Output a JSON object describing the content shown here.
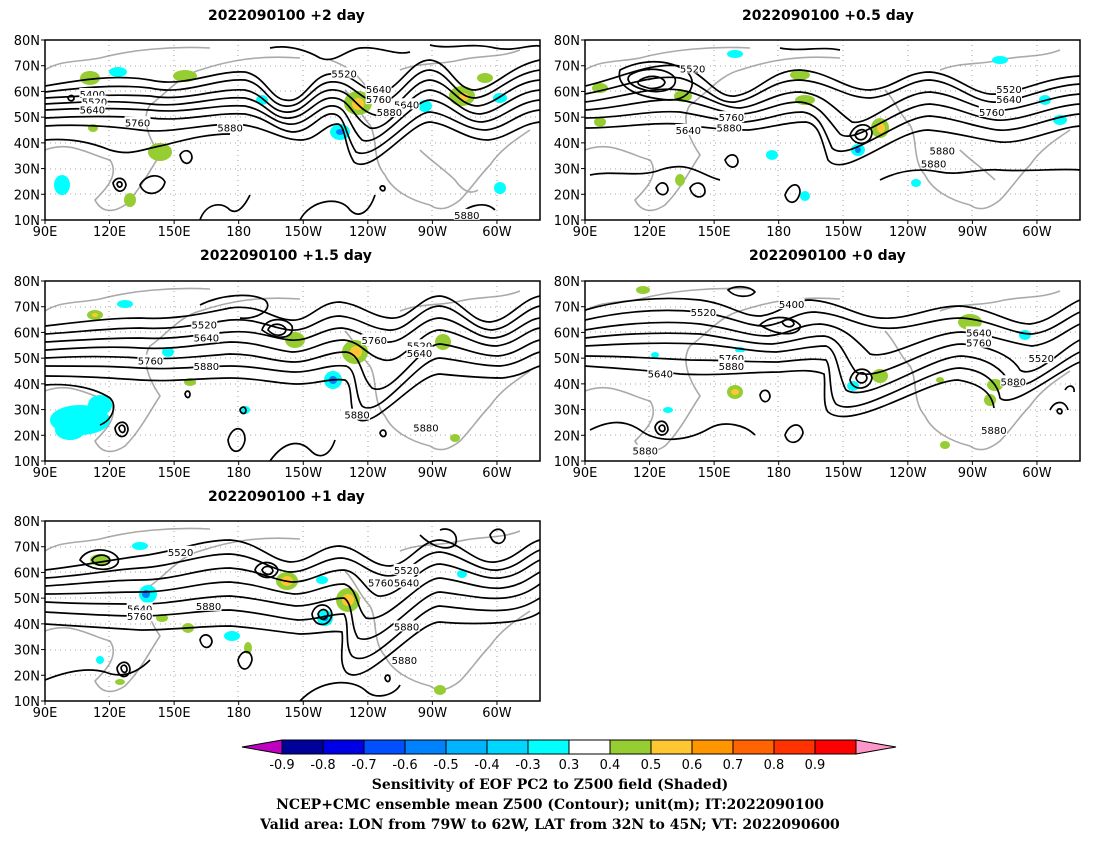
{
  "chart_data": [
    {
      "type": "contour_map",
      "title": "2022090100 +2 day",
      "lon_ticks": [
        "90E",
        "120E",
        "150E",
        "180",
        "150W",
        "120W",
        "90W",
        "60W"
      ],
      "lat_ticks": [
        "80N",
        "70N",
        "60N",
        "50N",
        "40N",
        "30N",
        "20N",
        "10N"
      ],
      "contour_labels": [
        {
          "text": "5400",
          "lon": 112,
          "lat": 59
        },
        {
          "text": "5520",
          "lon": 113,
          "lat": 56
        },
        {
          "text": "5640",
          "lon": 112,
          "lat": 53
        },
        {
          "text": "5760",
          "lon": 133,
          "lat": 48
        },
        {
          "text": "5880",
          "lon": 176,
          "lat": 46
        },
        {
          "text": "5520",
          "lon": 229,
          "lat": 67
        },
        {
          "text": "5640",
          "lon": 245,
          "lat": 61
        },
        {
          "text": "5760",
          "lon": 245,
          "lat": 57
        },
        {
          "text": "5640",
          "lon": 258,
          "lat": 55
        },
        {
          "text": "5880",
          "lon": 250,
          "lat": 52
        },
        {
          "text": "5880",
          "lon": 286,
          "lat": 12
        }
      ]
    },
    {
      "type": "contour_map",
      "title": "2022090100 +0.5 day",
      "lon_ticks": [
        "90E",
        "120E",
        "150E",
        "180",
        "150W",
        "120W",
        "90W",
        "60W"
      ],
      "lat_ticks": [
        "80N",
        "70N",
        "60N",
        "50N",
        "40N",
        "30N",
        "20N",
        "10N"
      ],
      "contour_labels": [
        {
          "text": "5520",
          "lon": 140,
          "lat": 69
        },
        {
          "text": "5640",
          "lon": 138,
          "lat": 45
        },
        {
          "text": "5760",
          "lon": 158,
          "lat": 50
        },
        {
          "text": "5880",
          "lon": 157,
          "lat": 46
        },
        {
          "text": "5520",
          "lon": 287,
          "lat": 61
        },
        {
          "text": "5640",
          "lon": 287,
          "lat": 57
        },
        {
          "text": "5760",
          "lon": 279,
          "lat": 52
        },
        {
          "text": "5880",
          "lon": 256,
          "lat": 37
        },
        {
          "text": "5880",
          "lon": 252,
          "lat": 32
        }
      ]
    },
    {
      "type": "contour_map",
      "title": "2022090100 +1.5 day",
      "lon_ticks": [
        "90E",
        "120E",
        "150E",
        "180",
        "150W",
        "120W",
        "90W",
        "60W"
      ],
      "lat_ticks": [
        "80N",
        "70N",
        "60N",
        "50N",
        "40N",
        "30N",
        "20N",
        "10N"
      ],
      "contour_labels": [
        {
          "text": "5520",
          "lon": 164,
          "lat": 63
        },
        {
          "text": "5640",
          "lon": 165,
          "lat": 58
        },
        {
          "text": "5760",
          "lon": 139,
          "lat": 49
        },
        {
          "text": "5880",
          "lon": 165,
          "lat": 47
        },
        {
          "text": "5760",
          "lon": 243,
          "lat": 57
        },
        {
          "text": "5520",
          "lon": 264,
          "lat": 55
        },
        {
          "text": "5640",
          "lon": 264,
          "lat": 52
        },
        {
          "text": "5880",
          "lon": 235,
          "lat": 28
        },
        {
          "text": "5880",
          "lon": 267,
          "lat": 23
        }
      ]
    },
    {
      "type": "contour_map",
      "title": "2022090100 +0 day",
      "lon_ticks": [
        "90E",
        "120E",
        "150E",
        "180",
        "150W",
        "120W",
        "90W",
        "60W"
      ],
      "lat_ticks": [
        "80N",
        "70N",
        "60N",
        "50N",
        "40N",
        "30N",
        "20N",
        "10N"
      ],
      "contour_labels": [
        {
          "text": "5520",
          "lon": 145,
          "lat": 68
        },
        {
          "text": "5400",
          "lon": 186,
          "lat": 71
        },
        {
          "text": "5640",
          "lon": 273,
          "lat": 60
        },
        {
          "text": "5760",
          "lon": 273,
          "lat": 56
        },
        {
          "text": "5760",
          "lon": 158,
          "lat": 50
        },
        {
          "text": "5880",
          "lon": 158,
          "lat": 47
        },
        {
          "text": "5640",
          "lon": 125,
          "lat": 44
        },
        {
          "text": "5520",
          "lon": 302,
          "lat": 50
        },
        {
          "text": "5880",
          "lon": 289,
          "lat": 41
        },
        {
          "text": "5880",
          "lon": 280,
          "lat": 22
        },
        {
          "text": "5880",
          "lon": 118,
          "lat": 14
        }
      ]
    },
    {
      "type": "contour_map",
      "title": "2022090100 +1 day",
      "lon_ticks": [
        "90E",
        "120E",
        "150E",
        "180",
        "150W",
        "120W",
        "90W",
        "60W"
      ],
      "lat_ticks": [
        "80N",
        "70N",
        "60N",
        "50N",
        "40N",
        "30N",
        "20N",
        "10N"
      ],
      "contour_labels": [
        {
          "text": "5520",
          "lon": 153,
          "lat": 68
        },
        {
          "text": "5640",
          "lon": 134,
          "lat": 46
        },
        {
          "text": "5760",
          "lon": 134,
          "lat": 43
        },
        {
          "text": "5880",
          "lon": 166,
          "lat": 47
        },
        {
          "text": "5760",
          "lon": 246,
          "lat": 56
        },
        {
          "text": "5520",
          "lon": 258,
          "lat": 61
        },
        {
          "text": "5640",
          "lon": 258,
          "lat": 56
        },
        {
          "text": "5880",
          "lon": 258,
          "lat": 39
        },
        {
          "text": "5880",
          "lon": 257,
          "lat": 26
        }
      ]
    }
  ],
  "colorbar": {
    "labels": [
      "-0.9",
      "-0.8",
      "-0.7",
      "-0.6",
      "-0.5",
      "-0.4",
      "-0.3",
      "0.3",
      "0.4",
      "0.5",
      "0.6",
      "0.7",
      "0.8",
      "0.9"
    ],
    "colors": [
      "#c000c0",
      "#00009a",
      "#0000e6",
      "#0050ff",
      "#0082ff",
      "#00b4ff",
      "#00d7ff",
      "#00ffff",
      "#ffffff",
      "#96cd32",
      "#ffc832",
      "#ff9600",
      "#ff6400",
      "#ff3200",
      "#ff0000",
      "#ff96c8"
    ]
  },
  "footer": {
    "line1": "Sensitivity of EOF PC2 to Z500 field (Shaded)",
    "line2": "NCEP+CMC ensemble mean Z500 (Contour); unit(m); IT:2022090100",
    "line3": "Valid area: LON from 79W to 62W, LAT from 32N to 45N; VT: 2022090600"
  }
}
